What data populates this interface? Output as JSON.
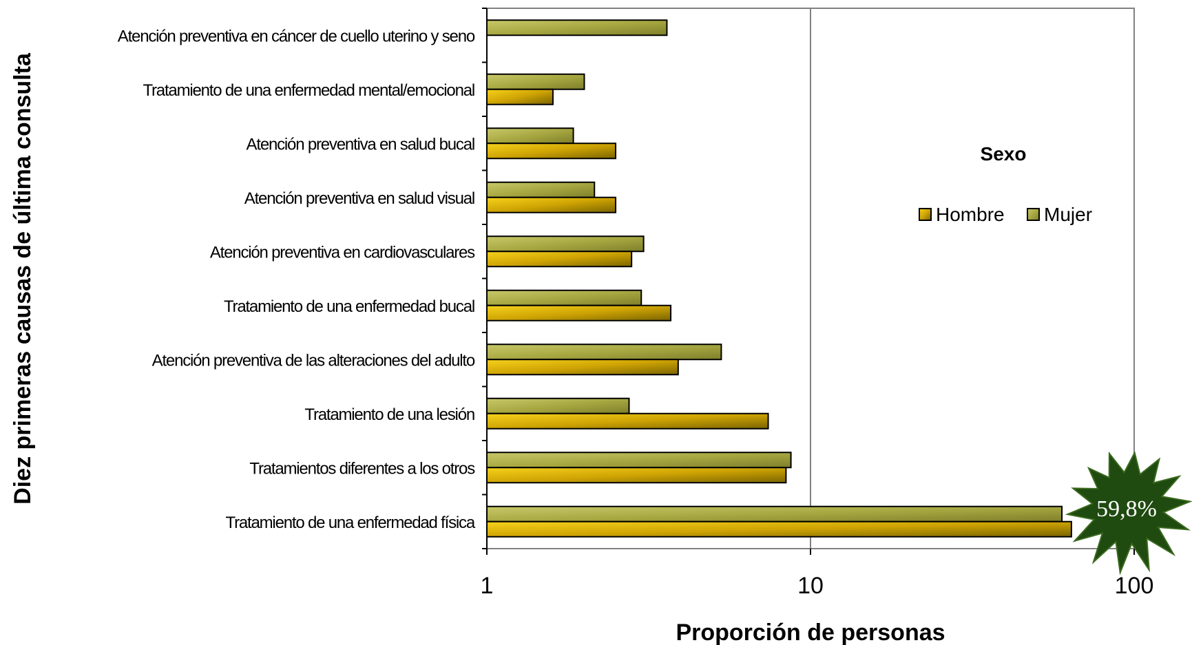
{
  "chart_data": {
    "type": "bar",
    "orientation": "horizontal",
    "xscale": "log",
    "xlim": [
      1,
      100
    ],
    "xticks": [
      "1",
      "10",
      "100"
    ],
    "xlabel": "Proporción de personas",
    "ylabel": "Diez primeras causas de última consulta",
    "legend_title": "Sexo",
    "legend_position": "right",
    "grid": "vertical major gridlines",
    "categories": [
      "Atención preventiva en cáncer de cuello uterino y seno",
      "Tratamiento de una enfermedad mental/emocional",
      "Atención preventiva en salud bucal",
      "Atención preventiva en salud visual",
      "Atención preventiva en cardiovasculares",
      "Tratamiento de una enfermedad bucal",
      "Atención preventiva de las alteraciones del adulto",
      "Tratamiento de una lesión",
      "Tratamientos diferentes a los otros",
      "Tratamiento de una enfermedad física"
    ],
    "series": [
      {
        "name": "Hombre",
        "color": "#e3c000",
        "values": [
          null,
          1.6,
          2.5,
          2.5,
          2.8,
          3.7,
          3.9,
          7.4,
          8.4,
          64.0
        ]
      },
      {
        "name": "Mujer",
        "color": "#b3b64b",
        "values": [
          3.6,
          2.0,
          1.85,
          2.15,
          3.05,
          3.0,
          5.3,
          2.75,
          8.7,
          59.8
        ]
      }
    ],
    "annotation": "59,8%"
  },
  "colors": {
    "hombre": "#e3c000",
    "mujer": "#b3b64b",
    "burst": "#1f4a10",
    "gridline": "#808080"
  }
}
